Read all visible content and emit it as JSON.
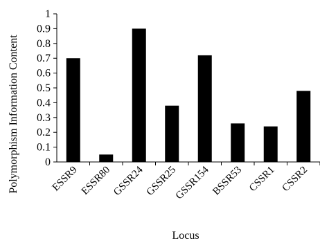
{
  "chart_data": {
    "type": "bar",
    "categories": [
      "ESSR9",
      "ESSR80",
      "GSSR24",
      "GSSR25",
      "GSSR154",
      "BSSR53",
      "CSSR1",
      "CSSR2"
    ],
    "values": [
      0.7,
      0.05,
      0.9,
      0.38,
      0.72,
      0.26,
      0.24,
      0.48
    ],
    "xlabel": "Locus",
    "ylabel": "Polymorphism Information Content",
    "ylim": [
      0,
      1
    ],
    "yticks": [
      "0",
      "0.1",
      "0.2",
      "0.3",
      "0.4",
      "0.5",
      "0.6",
      "0.7",
      "0.8",
      "0.9",
      "1"
    ],
    "grid": false,
    "bar_color": "#000000"
  }
}
